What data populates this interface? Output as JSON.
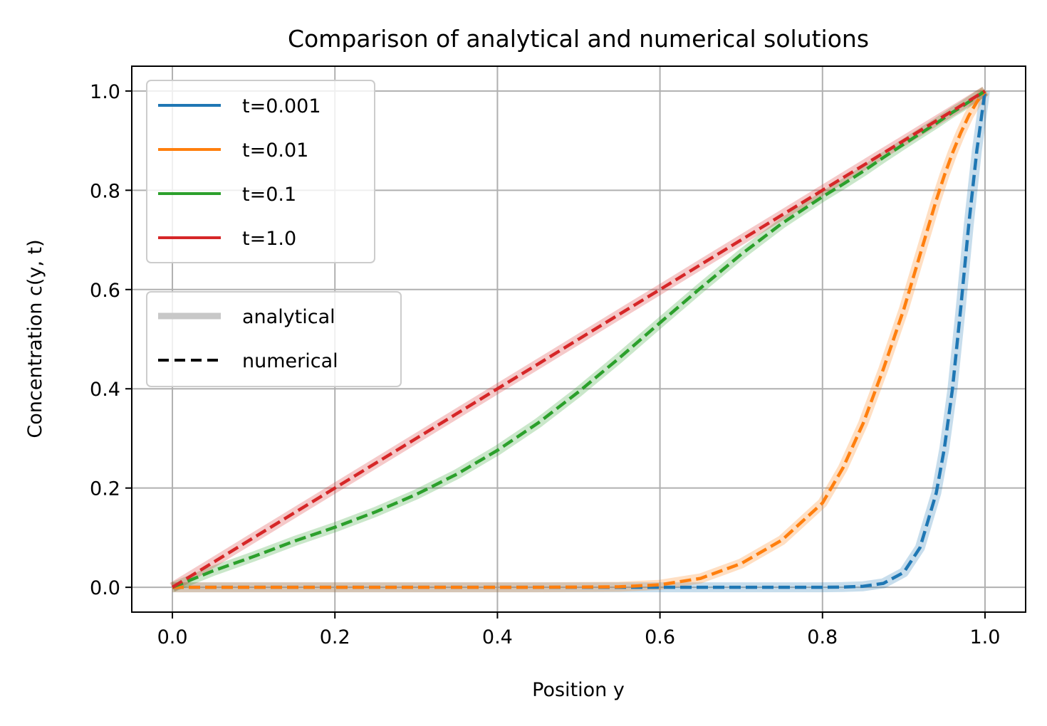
{
  "chart_data": {
    "type": "line",
    "title": "Comparison of analytical and numerical solutions",
    "xlabel": "Position y",
    "ylabel": "Concentration c(y, t)",
    "xlim": [
      -0.05,
      1.05
    ],
    "ylim": [
      -0.05,
      1.05
    ],
    "xticks": [
      "0.0",
      "0.2",
      "0.4",
      "0.6",
      "0.8",
      "1.0"
    ],
    "yticks": [
      "0.0",
      "0.2",
      "0.4",
      "0.6",
      "0.8",
      "1.0"
    ],
    "grid": true,
    "x": [
      0.0,
      0.05,
      0.1,
      0.15,
      0.2,
      0.25,
      0.3,
      0.35,
      0.4,
      0.45,
      0.5,
      0.55,
      0.6,
      0.65,
      0.7,
      0.75,
      0.8,
      0.825,
      0.85,
      0.875,
      0.9,
      0.92,
      0.94,
      0.95,
      0.96,
      0.97,
      0.98,
      0.99,
      1.0
    ],
    "series": [
      {
        "name": "t=0.001",
        "color": "#1f77b4",
        "values": [
          0,
          0,
          0,
          0,
          0,
          0,
          0,
          0,
          0,
          0,
          0,
          0,
          0,
          0,
          0,
          0,
          0,
          0.0005,
          0.002,
          0.008,
          0.03,
          0.08,
          0.19,
          0.28,
          0.4,
          0.56,
          0.73,
          0.88,
          1.0
        ]
      },
      {
        "name": "t=0.01",
        "color": "#ff7f0e",
        "values": [
          0,
          0,
          0,
          0,
          0,
          0,
          0,
          0,
          0,
          0,
          0.0005,
          0.001,
          0.005,
          0.018,
          0.048,
          0.095,
          0.17,
          0.24,
          0.33,
          0.44,
          0.56,
          0.67,
          0.78,
          0.83,
          0.875,
          0.915,
          0.95,
          0.978,
          1.0
        ]
      },
      {
        "name": "t=0.1",
        "color": "#2ca02c",
        "values": [
          0,
          0.033,
          0.062,
          0.093,
          0.121,
          0.152,
          0.187,
          0.228,
          0.276,
          0.331,
          0.394,
          0.462,
          0.533,
          0.603,
          0.671,
          0.733,
          0.787,
          0.812,
          0.838,
          0.866,
          0.893,
          0.914,
          0.935,
          0.946,
          0.957,
          0.967,
          0.978,
          0.989,
          1.0
        ]
      },
      {
        "name": "t=1.0",
        "color": "#d62728",
        "values": [
          0,
          0.05,
          0.1,
          0.15,
          0.2,
          0.25,
          0.3,
          0.35,
          0.4,
          0.45,
          0.5,
          0.55,
          0.6,
          0.65,
          0.7,
          0.75,
          0.8,
          0.825,
          0.85,
          0.875,
          0.9,
          0.92,
          0.94,
          0.95,
          0.96,
          0.97,
          0.98,
          0.99,
          1.0
        ]
      }
    ],
    "legends": [
      {
        "placement": "upper-left",
        "entries": [
          "t=0.001",
          "t=0.01",
          "t=0.1",
          "t=1.0"
        ]
      },
      {
        "placement": "center-left",
        "entries": [
          "analytical",
          "numerical"
        ]
      }
    ],
    "style_legend": [
      {
        "name": "analytical",
        "color": "#c8c8c8",
        "style": "solid-wide-translucent"
      },
      {
        "name": "numerical",
        "color": "#000000",
        "style": "dashed"
      }
    ]
  }
}
